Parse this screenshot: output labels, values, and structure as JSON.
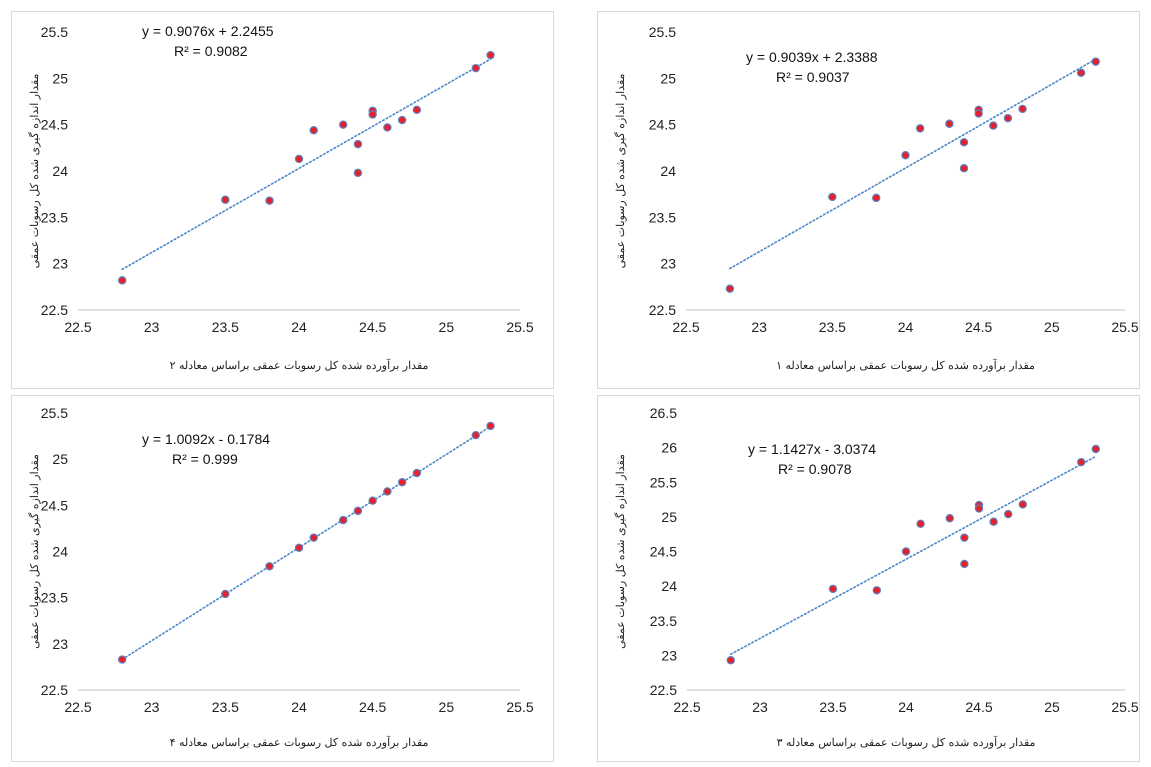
{
  "chart_data": [
    {
      "type": "scatter",
      "title": "",
      "xlabel": "مقدار برآورده شده کل رسوبات عمقی براساس معادله ۲",
      "ylabel": "مقدار اندازه گیری شده کل رسوبات عمقی",
      "xlim": [
        22.5,
        25.5
      ],
      "ylim": [
        22.5,
        25.5
      ],
      "xticks": [
        "22.5",
        "23",
        "23.5",
        "24",
        "24.5",
        "25",
        "25.5"
      ],
      "yticks": [
        "22.5",
        "23",
        "23.5",
        "24",
        "24.5",
        "25",
        "25.5"
      ],
      "equation": "y = 0.9076x + 2.2455",
      "r2": "R² = 0.9082",
      "trendline": {
        "slope": 0.9076,
        "intercept": 2.2455
      },
      "grid": false,
      "points": [
        {
          "x": 22.8,
          "y": 22.82
        },
        {
          "x": 23.5,
          "y": 23.69
        },
        {
          "x": 23.8,
          "y": 23.68
        },
        {
          "x": 24.0,
          "y": 24.13
        },
        {
          "x": 24.1,
          "y": 24.44
        },
        {
          "x": 24.3,
          "y": 24.5
        },
        {
          "x": 24.4,
          "y": 24.29
        },
        {
          "x": 24.4,
          "y": 23.98
        },
        {
          "x": 24.5,
          "y": 24.65
        },
        {
          "x": 24.5,
          "y": 24.61
        },
        {
          "x": 24.6,
          "y": 24.47
        },
        {
          "x": 24.7,
          "y": 24.55
        },
        {
          "x": 24.8,
          "y": 24.66
        },
        {
          "x": 25.2,
          "y": 25.11
        },
        {
          "x": 25.3,
          "y": 25.25
        }
      ]
    },
    {
      "type": "scatter",
      "title": "",
      "xlabel": "مقدار برآورده شده کل رسوبات عمقی براساس معادله ۱",
      "ylabel": "مقدار اندازه گیری شده کل رسوبات عمقی",
      "xlim": [
        22.5,
        25.5
      ],
      "ylim": [
        22.5,
        25.5
      ],
      "xticks": [
        "22.5",
        "23",
        "23.5",
        "24",
        "24.5",
        "25",
        "25.5"
      ],
      "yticks": [
        "22.5",
        "23",
        "23.5",
        "24",
        "24.5",
        "25",
        "25.5"
      ],
      "equation": "y = 0.9039x + 2.3388",
      "r2": "R² = 0.9037",
      "trendline": {
        "slope": 0.9039,
        "intercept": 2.3388
      },
      "grid": false,
      "points": [
        {
          "x": 22.8,
          "y": 22.73
        },
        {
          "x": 23.5,
          "y": 23.72
        },
        {
          "x": 23.8,
          "y": 23.71
        },
        {
          "x": 24.0,
          "y": 24.17
        },
        {
          "x": 24.1,
          "y": 24.46
        },
        {
          "x": 24.3,
          "y": 24.51
        },
        {
          "x": 24.4,
          "y": 24.31
        },
        {
          "x": 24.4,
          "y": 24.03
        },
        {
          "x": 24.5,
          "y": 24.66
        },
        {
          "x": 24.5,
          "y": 24.62
        },
        {
          "x": 24.6,
          "y": 24.49
        },
        {
          "x": 24.7,
          "y": 24.57
        },
        {
          "x": 24.8,
          "y": 24.67
        },
        {
          "x": 25.2,
          "y": 25.06
        },
        {
          "x": 25.3,
          "y": 25.18
        }
      ]
    },
    {
      "type": "scatter",
      "title": "",
      "xlabel": "مقدار برآورده شده کل رسوبات عمقی براساس معادله ۴",
      "ylabel": "مقدار اندازه گیری شده کل رسوبات عمقی",
      "xlim": [
        22.5,
        25.5
      ],
      "ylim": [
        22.5,
        25.5
      ],
      "xticks": [
        "22.5",
        "23",
        "23.5",
        "24",
        "24.5",
        "25",
        "25.5"
      ],
      "yticks": [
        "22.5",
        "23",
        "23.5",
        "24",
        "24.5",
        "25",
        "25.5"
      ],
      "equation": "y = 1.0092x - 0.1784",
      "r2": "R² = 0.999",
      "trendline": {
        "slope": 1.0092,
        "intercept": -0.1784
      },
      "grid": false,
      "points": [
        {
          "x": 22.8,
          "y": 22.83
        },
        {
          "x": 23.5,
          "y": 23.54
        },
        {
          "x": 23.8,
          "y": 23.84
        },
        {
          "x": 24.0,
          "y": 24.04
        },
        {
          "x": 24.1,
          "y": 24.15
        },
        {
          "x": 24.3,
          "y": 24.34
        },
        {
          "x": 24.4,
          "y": 24.44
        },
        {
          "x": 24.5,
          "y": 24.55
        },
        {
          "x": 24.6,
          "y": 24.65
        },
        {
          "x": 24.7,
          "y": 24.75
        },
        {
          "x": 24.8,
          "y": 24.85
        },
        {
          "x": 25.2,
          "y": 25.26
        },
        {
          "x": 25.3,
          "y": 25.36
        }
      ]
    },
    {
      "type": "scatter",
      "title": "",
      "xlabel": "مقدار برآورده شده کل رسوبات عمقی براساس معادله ۳",
      "ylabel": "مقدار اندازه گیری شده کل رسوبات عمقی",
      "xlim": [
        22.5,
        25.5
      ],
      "ylim": [
        22.5,
        26.5
      ],
      "xticks": [
        "22.5",
        "23",
        "23.5",
        "24",
        "24.5",
        "25",
        "25.5"
      ],
      "yticks": [
        "22.5",
        "23",
        "23.5",
        "24",
        "24.5",
        "25",
        "25.5",
        "26",
        "26.5"
      ],
      "equation": "y = 1.1427x - 3.0374",
      "r2": "R² = 0.9078",
      "trendline": {
        "slope": 1.1427,
        "intercept": -3.0374
      },
      "grid": false,
      "points": [
        {
          "x": 22.8,
          "y": 22.93
        },
        {
          "x": 23.5,
          "y": 23.96
        },
        {
          "x": 23.8,
          "y": 23.94
        },
        {
          "x": 24.0,
          "y": 24.5
        },
        {
          "x": 24.1,
          "y": 24.9
        },
        {
          "x": 24.3,
          "y": 24.98
        },
        {
          "x": 24.4,
          "y": 24.7
        },
        {
          "x": 24.4,
          "y": 24.32
        },
        {
          "x": 24.5,
          "y": 25.17
        },
        {
          "x": 24.5,
          "y": 25.12
        },
        {
          "x": 24.6,
          "y": 24.93
        },
        {
          "x": 24.7,
          "y": 25.04
        },
        {
          "x": 24.8,
          "y": 25.18
        },
        {
          "x": 25.2,
          "y": 25.79
        },
        {
          "x": 25.3,
          "y": 25.98
        }
      ]
    }
  ],
  "colors": {
    "marker_fill": "#e8202a",
    "marker_edge": "#5b7fbf",
    "trendline": "#4a86c8",
    "axis": "#bfbfbf"
  }
}
